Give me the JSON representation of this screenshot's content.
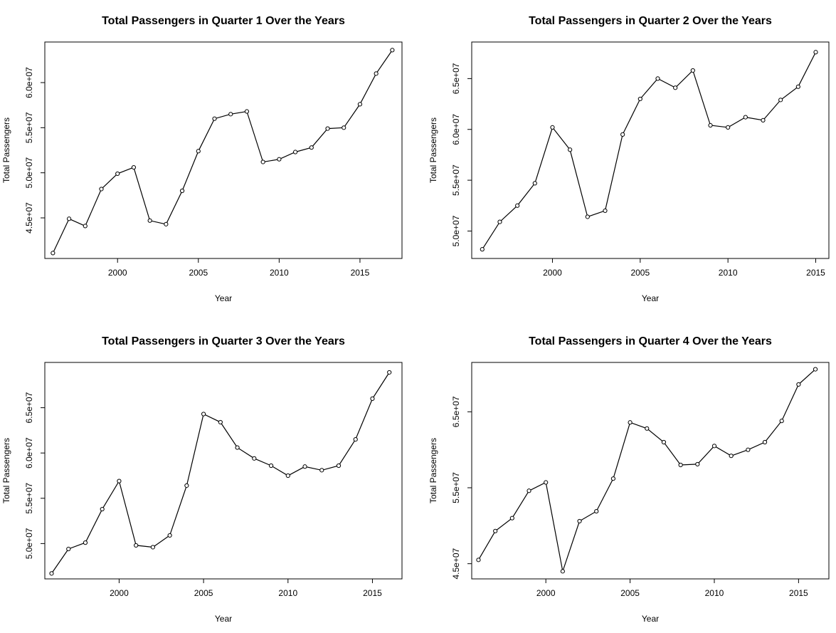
{
  "chart_data": [
    {
      "type": "line",
      "title": "Total Passengers in Quarter 1 Over the Years",
      "xlabel": "Year",
      "ylabel": "Total Passengers",
      "x": [
        1996,
        1997,
        1998,
        1999,
        2000,
        2001,
        2002,
        2003,
        2004,
        2005,
        2006,
        2007,
        2008,
        2009,
        2010,
        2011,
        2012,
        2013,
        2014,
        2015,
        2016,
        2017
      ],
      "values": [
        41100000,
        44900000,
        44100000,
        48200000,
        49900000,
        50600000,
        44700000,
        44300000,
        48000000,
        52400000,
        56000000,
        56500000,
        56800000,
        51200000,
        51500000,
        52300000,
        52800000,
        54900000,
        55000000,
        57600000,
        61000000,
        63600000
      ],
      "xlim": [
        1995.5,
        2017.6
      ],
      "ylim": [
        40500000,
        64500000
      ],
      "xticks": [
        2000,
        2005,
        2010,
        2015
      ],
      "xtick_labels": [
        "2000",
        "2005",
        "2010",
        "2015"
      ],
      "yticks": [
        45000000,
        50000000,
        55000000,
        60000000
      ],
      "ytick_labels": [
        "4.5e+07",
        "5.0e+07",
        "5.5e+07",
        "6.0e+07"
      ],
      "grid": false
    },
    {
      "type": "line",
      "title": "Total Passengers in Quarter 2 Over the Years",
      "xlabel": "Year",
      "ylabel": "Total Passengers",
      "x": [
        1996,
        1997,
        1998,
        1999,
        2000,
        2001,
        2002,
        2003,
        2004,
        2005,
        2006,
        2007,
        2008,
        2009,
        2010,
        2011,
        2012,
        2013,
        2014,
        2015
      ],
      "values": [
        48200000,
        50900000,
        52500000,
        54700000,
        60200000,
        58000000,
        51400000,
        52000000,
        59500000,
        63000000,
        65000000,
        64100000,
        65800000,
        60400000,
        60200000,
        61200000,
        60900000,
        62900000,
        64200000,
        67600000
      ],
      "xlim": [
        1995.4,
        2015.75
      ],
      "ylim": [
        47300000,
        68600000
      ],
      "xticks": [
        2000,
        2005,
        2010,
        2015
      ],
      "xtick_labels": [
        "2000",
        "2005",
        "2010",
        "2015"
      ],
      "yticks": [
        50000000,
        55000000,
        60000000,
        65000000
      ],
      "ytick_labels": [
        "5.0e+07",
        "5.5e+07",
        "6.0e+07",
        "6.5e+07"
      ],
      "grid": false
    },
    {
      "type": "line",
      "title": "Total Passengers in Quarter 3 Over the Years",
      "xlabel": "Year",
      "ylabel": "Total Passengers",
      "x": [
        1996,
        1997,
        1998,
        1999,
        2000,
        2001,
        2002,
        2003,
        2004,
        2005,
        2006,
        2007,
        2008,
        2009,
        2010,
        2011,
        2012,
        2013,
        2014,
        2015,
        2016
      ],
      "values": [
        46700000,
        49400000,
        50100000,
        53800000,
        56900000,
        49800000,
        49600000,
        50900000,
        56400000,
        64300000,
        63400000,
        60600000,
        59400000,
        58600000,
        57500000,
        58500000,
        58100000,
        58600000,
        61500000,
        66000000,
        68900000
      ],
      "xlim": [
        1995.6,
        2016.75
      ],
      "ylim": [
        46100000,
        70000000
      ],
      "xticks": [
        2000,
        2005,
        2010,
        2015
      ],
      "xtick_labels": [
        "2000",
        "2005",
        "2010",
        "2015"
      ],
      "yticks": [
        50000000,
        55000000,
        60000000,
        65000000
      ],
      "ytick_labels": [
        "5.0e+07",
        "5.5e+07",
        "6.0e+07",
        "6.5e+07"
      ],
      "grid": false
    },
    {
      "type": "line",
      "title": "Total Passengers in Quarter 4 Over the Years",
      "xlabel": "Year",
      "ylabel": "Total Passengers",
      "x": [
        1996,
        1997,
        1998,
        1999,
        2000,
        2001,
        2002,
        2003,
        2004,
        2005,
        2006,
        2007,
        2008,
        2009,
        2010,
        2011,
        2012,
        2013,
        2014,
        2015,
        2016
      ],
      "values": [
        45500000,
        49300000,
        51000000,
        54600000,
        55700000,
        44000000,
        50600000,
        51900000,
        56200000,
        63600000,
        62800000,
        61000000,
        58000000,
        58100000,
        60500000,
        59200000,
        60000000,
        61000000,
        63800000,
        68600000,
        70600000
      ],
      "xlim": [
        1995.6,
        2016.8
      ],
      "ylim": [
        43000000,
        71500000
      ],
      "xticks": [
        2000,
        2005,
        2010,
        2015
      ],
      "xtick_labels": [
        "2000",
        "2005",
        "2010",
        "2015"
      ],
      "yticks": [
        45000000,
        55000000,
        65000000
      ],
      "ytick_labels": [
        "4.5e+07",
        "5.5e+07",
        "6.5e+07"
      ],
      "grid": false
    }
  ]
}
